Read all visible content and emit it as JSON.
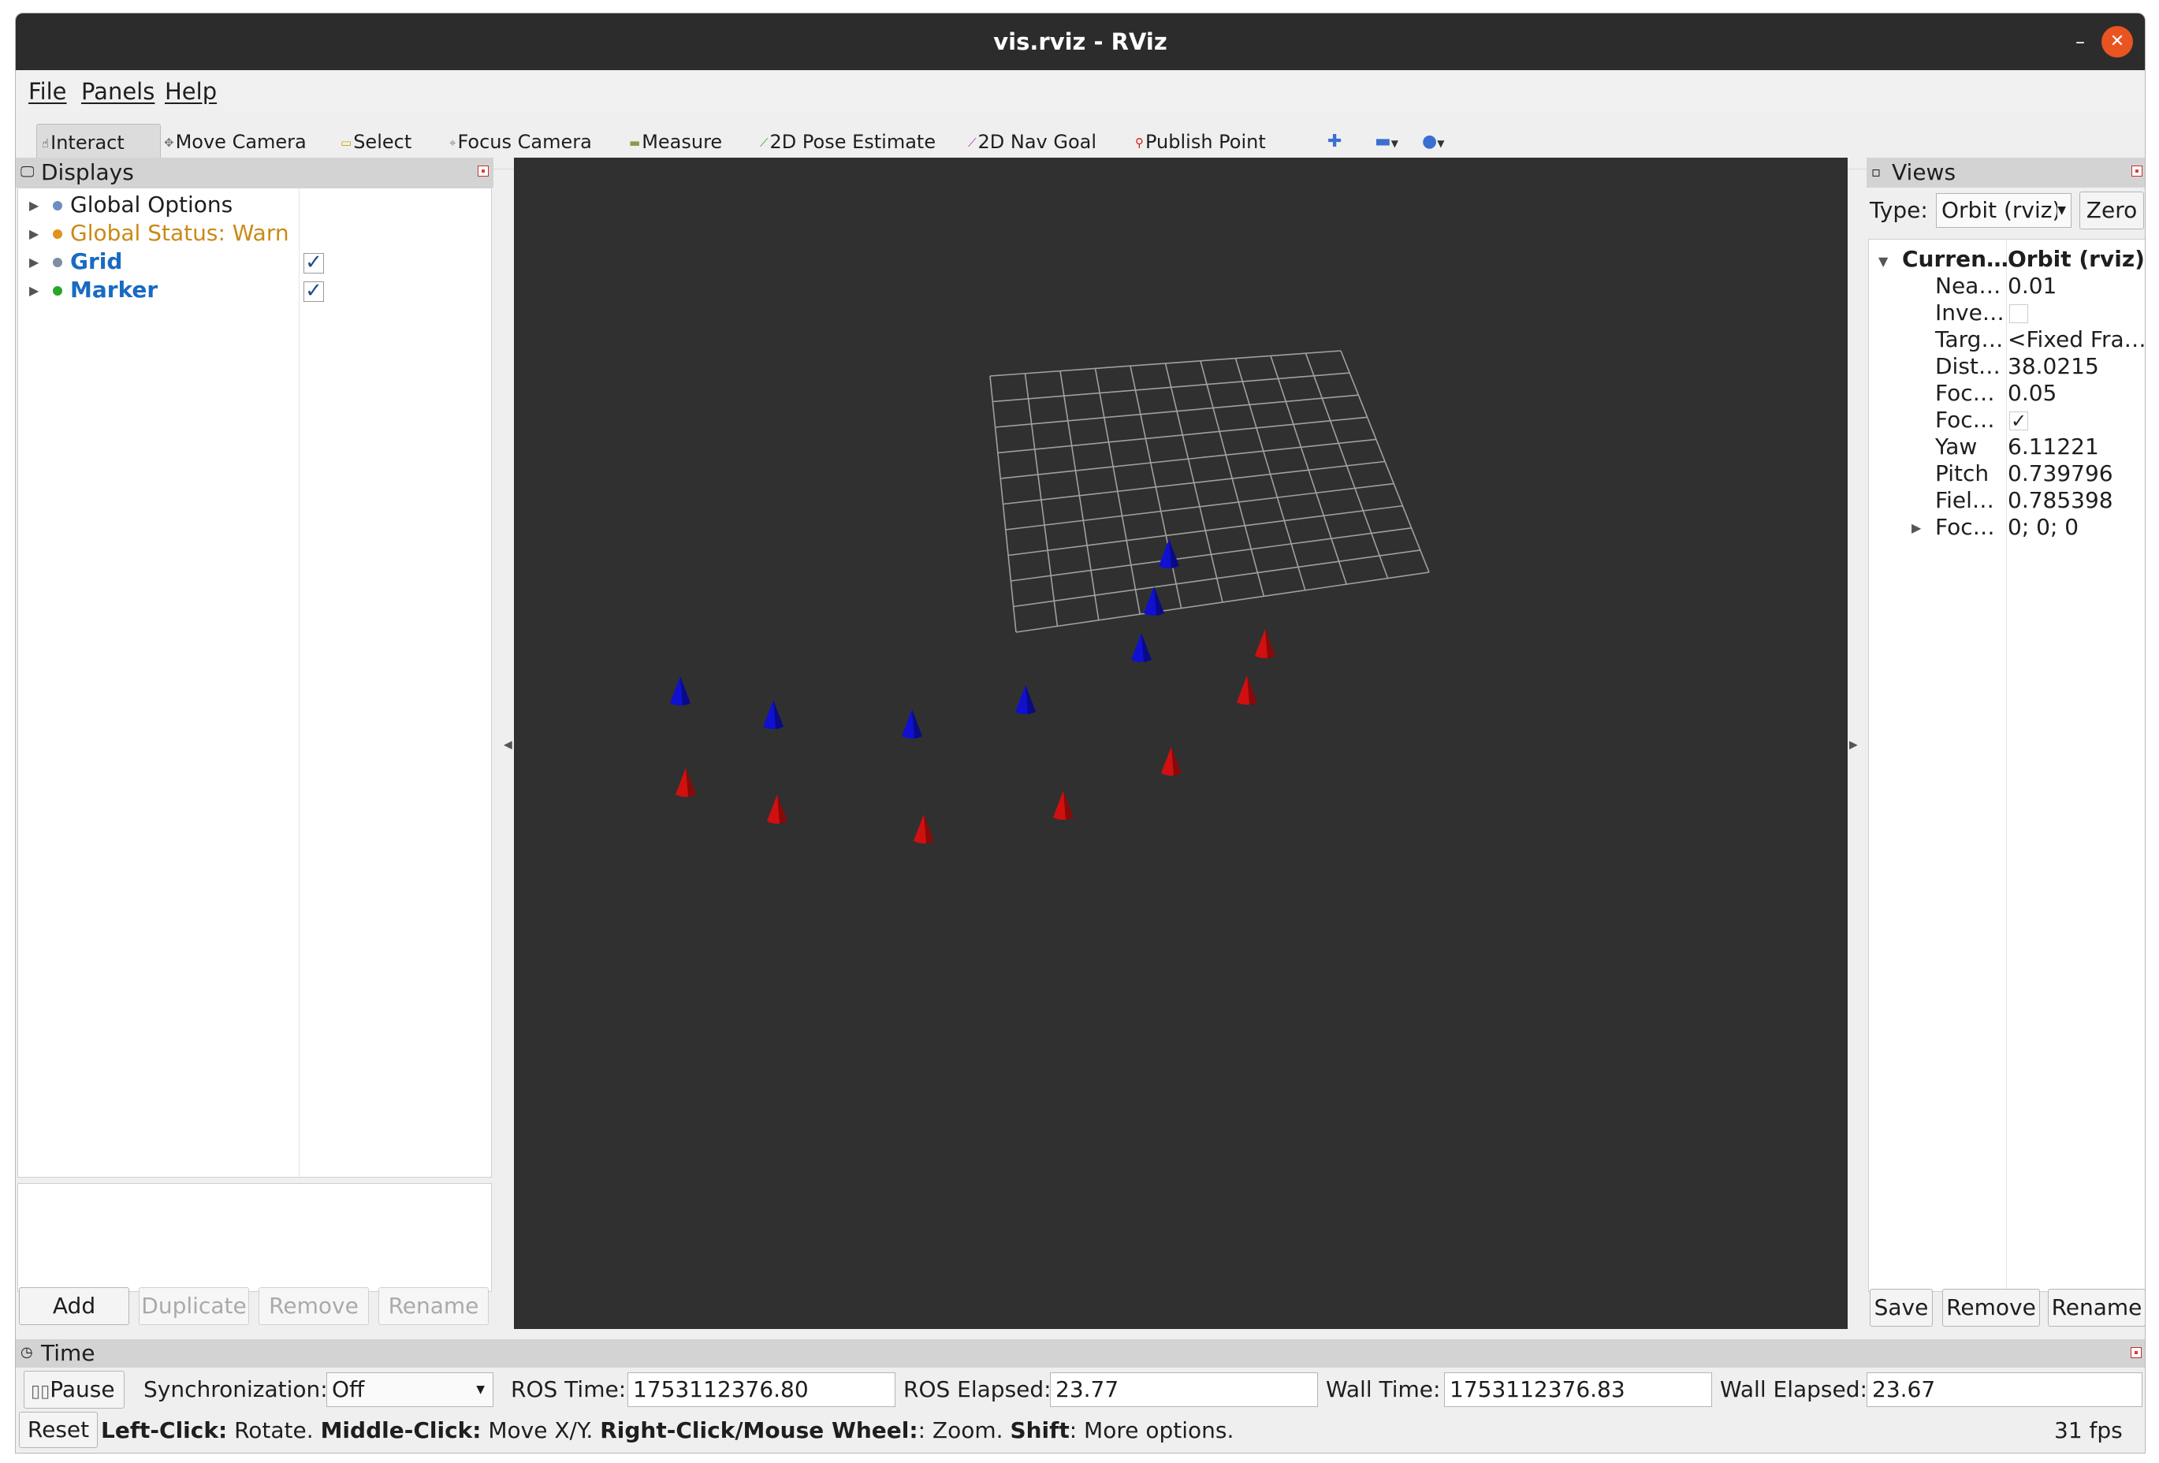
{
  "window": {
    "title": "vis.rviz - RViz",
    "minimize": "–",
    "maximize": "☐",
    "close": "✕"
  },
  "menu": [
    "File",
    "Panels",
    "Help"
  ],
  "toolbar": {
    "interact": "Interact",
    "move_camera": "Move Camera",
    "select": "Select",
    "focus_camera": "Focus Camera",
    "measure": "Measure",
    "pose_estimate": "2D Pose Estimate",
    "nav_goal": "2D Nav Goal",
    "publish_point": "Publish Point"
  },
  "displays": {
    "title": "Displays",
    "items": [
      {
        "label": "Global Options",
        "color": "#1e1e1e",
        "dot": "#6a8fc2",
        "checked": null
      },
      {
        "label": "Global Status: Warn",
        "color": "#c98a16",
        "dot": "#e0921e",
        "checked": null
      },
      {
        "label": "Grid",
        "color": "#1a6ac2",
        "dot": "#7c8ea3",
        "checked": true
      },
      {
        "label": "Marker",
        "color": "#1a6ac2",
        "dot": "#2aa52a",
        "checked": true
      }
    ],
    "buttons": {
      "add": "Add",
      "duplicate": "Duplicate",
      "remove": "Remove",
      "rename": "Rename"
    }
  },
  "views": {
    "title": "Views",
    "type_label": "Type:",
    "type_value": "Orbit (rviz)",
    "zero": "Zero",
    "current_key": "Curren…",
    "current_value": "Orbit (rviz)",
    "props": [
      {
        "k": "Nea…",
        "v": "0.01"
      },
      {
        "k": "Inve…",
        "v": "",
        "checkbox": true,
        "checked": false
      },
      {
        "k": "Targ…",
        "v": "<Fixed Fra…"
      },
      {
        "k": "Dist…",
        "v": "38.0215"
      },
      {
        "k": "Foc…",
        "v": "0.05"
      },
      {
        "k": "Foc…",
        "v": "",
        "checkbox": true,
        "checked": true
      },
      {
        "k": "Yaw",
        "v": "6.11221"
      },
      {
        "k": "Pitch",
        "v": "0.739796"
      },
      {
        "k": "Fiel…",
        "v": "0.785398"
      },
      {
        "k": "Foc…",
        "v": "0; 0; 0",
        "expandable": true
      }
    ],
    "buttons": {
      "save": "Save",
      "remove": "Remove",
      "rename": "Rename"
    }
  },
  "time": {
    "title": "Time",
    "pause": "Pause",
    "sync_label": "Synchronization:",
    "sync_value": "Off",
    "ros_time_label": "ROS Time:",
    "ros_time": "1753112376.80",
    "ros_elapsed_label": "ROS Elapsed:",
    "ros_elapsed": "23.77",
    "wall_time_label": "Wall Time:",
    "wall_time": "1753112376.83",
    "wall_elapsed_label": "Wall Elapsed:",
    "wall_elapsed": "23.67"
  },
  "status": {
    "reset": "Reset",
    "hint_left_b": "Left-Click:",
    "hint_left": " Rotate. ",
    "hint_mid_b": "Middle-Click:",
    "hint_mid": " Move X/Y. ",
    "hint_right_b": "Right-Click/Mouse Wheel:",
    "hint_right": ": Zoom. ",
    "hint_shift_b": "Shift",
    "hint_shift": ": More options.",
    "fps": "31 fps"
  },
  "scene": {
    "background": "#303030",
    "grid_color": "#a0a0a0",
    "blue_color": "#1010d0",
    "red_color": "#d01010"
  }
}
